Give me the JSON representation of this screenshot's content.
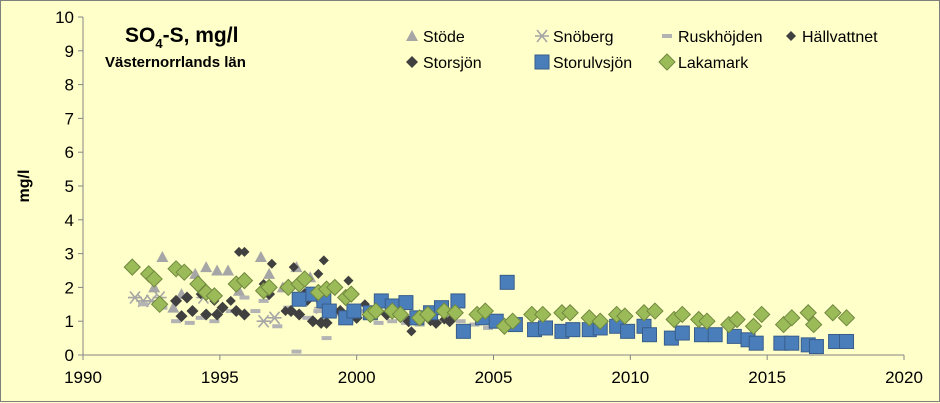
{
  "chart_data": {
    "type": "scatter",
    "title_main": "SO",
    "title_sub": "4",
    "title_rest": "-S, mg/l",
    "subtitle": "Västernorrlands län",
    "ylabel": "mg/l",
    "xlabel": "",
    "xlim": [
      1990,
      2020
    ],
    "ylim": [
      0,
      10
    ],
    "x_ticks": [
      "1990",
      "1995",
      "2000",
      "2005",
      "2010",
      "2015",
      "2020"
    ],
    "y_ticks": [
      "0",
      "1",
      "2",
      "3",
      "4",
      "5",
      "6",
      "7",
      "8",
      "9",
      "10"
    ],
    "legend_placement": "top-right",
    "grid": false,
    "series": [
      {
        "name": "Stöde",
        "marker": "triangle",
        "color": "#a6a6a6",
        "points": [
          [
            1992.6,
            2.0
          ],
          [
            1992.9,
            2.9
          ],
          [
            1993.3,
            1.4
          ],
          [
            1993.6,
            1.8
          ],
          [
            1994.1,
            2.4
          ],
          [
            1994.5,
            2.6
          ],
          [
            1994.9,
            2.5
          ],
          [
            1995.3,
            2.5
          ],
          [
            1995.7,
            1.9
          ],
          [
            1996.5,
            2.9
          ],
          [
            1996.8,
            2.4
          ],
          [
            1997.3,
            2.0
          ],
          [
            1997.8,
            2.6
          ],
          [
            1998.3,
            2.3
          ],
          [
            1998.8,
            1.8
          ]
        ]
      },
      {
        "name": "Snöberg",
        "marker": "asterisk",
        "color": "#a6a6a6",
        "points": [
          [
            1991.9,
            1.7
          ],
          [
            1992.2,
            1.6
          ],
          [
            1992.5,
            1.6
          ],
          [
            1992.8,
            1.7
          ],
          [
            1994.4,
            1.7
          ],
          [
            1996.6,
            1.0
          ],
          [
            1997.0,
            1.1
          ],
          [
            1998.7,
            1.4
          ]
        ]
      },
      {
        "name": "Ruskhöjden",
        "marker": "dash",
        "color": "#b3b3b3",
        "points": [
          [
            1992.2,
            1.5
          ],
          [
            1992.9,
            1.4
          ],
          [
            1993.4,
            1.0
          ],
          [
            1993.9,
            0.95
          ],
          [
            1994.3,
            1.1
          ],
          [
            1994.8,
            1.0
          ],
          [
            1995.4,
            1.3
          ],
          [
            1995.9,
            1.7
          ],
          [
            1996.3,
            1.3
          ],
          [
            1996.6,
            1.6
          ],
          [
            1997.1,
            0.85
          ],
          [
            1997.5,
            1.4
          ],
          [
            1997.8,
            0.1
          ],
          [
            1998.2,
            1.1
          ],
          [
            1998.6,
            1.3
          ],
          [
            1998.9,
            0.5
          ],
          [
            1999.3,
            1.2
          ],
          [
            1999.7,
            1.0
          ],
          [
            2000.3,
            1.3
          ],
          [
            2000.8,
            0.95
          ],
          [
            2001.3,
            1.0
          ],
          [
            2001.8,
            0.95
          ],
          [
            2002.3,
            0.9
          ],
          [
            2002.8,
            1.0
          ],
          [
            2003.3,
            1.1
          ],
          [
            2003.8,
            1.0
          ],
          [
            2004.3,
            0.9
          ],
          [
            2004.8,
            0.8
          ],
          [
            2005.3,
            0.95
          ]
        ]
      },
      {
        "name": "Hällvattnet",
        "marker": "small-diamond",
        "color": "#404040",
        "points": [
          [
            1993.8,
            1.7
          ],
          [
            1994.3,
            1.8
          ],
          [
            1994.8,
            1.6
          ],
          [
            1995.4,
            1.6
          ],
          [
            1995.7,
            3.05
          ],
          [
            1995.9,
            3.05
          ],
          [
            1996.6,
            2.1
          ],
          [
            1996.9,
            2.7
          ],
          [
            1997.4,
            1.3
          ],
          [
            1997.7,
            2.6
          ],
          [
            1998.2,
            1.6
          ],
          [
            1998.6,
            2.4
          ],
          [
            1998.8,
            2.8
          ],
          [
            1999.2,
            1.9
          ],
          [
            1999.7,
            2.2
          ],
          [
            2000.3,
            1.5
          ],
          [
            2001.2,
            1.4
          ],
          [
            2001.6,
            1.2
          ],
          [
            2002.0,
            0.7
          ],
          [
            2002.7,
            1.0
          ],
          [
            2003.2,
            1.05
          ]
        ]
      },
      {
        "name": "Storsjön",
        "marker": "diamond",
        "color": "#404040",
        "points": [
          [
            1993.4,
            1.6
          ],
          [
            1993.6,
            1.15
          ],
          [
            1993.8,
            1.7
          ],
          [
            1994.0,
            1.3
          ],
          [
            1994.5,
            1.2
          ],
          [
            1994.9,
            1.2
          ],
          [
            1995.1,
            1.4
          ],
          [
            1995.6,
            1.3
          ],
          [
            1995.9,
            1.2
          ],
          [
            1996.8,
            1.8
          ],
          [
            1997.6,
            1.3
          ],
          [
            1997.9,
            1.2
          ],
          [
            1998.1,
            1.8
          ],
          [
            1998.4,
            1.0
          ],
          [
            1998.7,
            0.95
          ],
          [
            1998.9,
            0.95
          ],
          [
            1999.4,
            1.3
          ],
          [
            2000.0,
            1.1
          ],
          [
            2000.6,
            1.2
          ],
          [
            2001.1,
            1.2
          ],
          [
            2001.9,
            1.0
          ],
          [
            2002.4,
            1.1
          ],
          [
            2002.9,
            0.95
          ],
          [
            2003.4,
            1.0
          ]
        ]
      },
      {
        "name": "Storulvsjön",
        "marker": "square",
        "color": "#4a7ebb",
        "points": [
          [
            1997.9,
            1.65
          ],
          [
            1998.4,
            1.8
          ],
          [
            1998.8,
            1.6
          ],
          [
            1999.0,
            1.3
          ],
          [
            1999.6,
            1.1
          ],
          [
            1999.9,
            1.3
          ],
          [
            2000.5,
            1.25
          ],
          [
            2000.9,
            1.6
          ],
          [
            2001.3,
            1.45
          ],
          [
            2001.8,
            1.55
          ],
          [
            2002.2,
            1.1
          ],
          [
            2002.7,
            1.25
          ],
          [
            2003.1,
            1.4
          ],
          [
            2003.7,
            1.6
          ],
          [
            2003.9,
            0.7
          ],
          [
            2004.6,
            1.1
          ],
          [
            2005.1,
            1.0
          ],
          [
            2005.5,
            2.15
          ],
          [
            2005.8,
            0.9
          ],
          [
            2006.5,
            0.75
          ],
          [
            2006.9,
            0.8
          ],
          [
            2007.5,
            0.7
          ],
          [
            2007.9,
            0.75
          ],
          [
            2008.5,
            0.75
          ],
          [
            2008.9,
            0.8
          ],
          [
            2009.5,
            0.85
          ],
          [
            2009.9,
            0.7
          ],
          [
            2010.5,
            0.85
          ],
          [
            2010.7,
            0.6
          ],
          [
            2011.5,
            0.5
          ],
          [
            2011.9,
            0.65
          ],
          [
            2012.6,
            0.6
          ],
          [
            2013.1,
            0.6
          ],
          [
            2013.8,
            0.55
          ],
          [
            2014.3,
            0.45
          ],
          [
            2014.6,
            0.35
          ],
          [
            2015.5,
            0.35
          ],
          [
            2015.9,
            0.35
          ],
          [
            2016.5,
            0.3
          ],
          [
            2016.8,
            0.25
          ],
          [
            2017.5,
            0.4
          ],
          [
            2017.9,
            0.4
          ]
        ]
      },
      {
        "name": "Lakamark",
        "marker": "diamond",
        "color": "#9bbb59",
        "points": [
          [
            1991.8,
            2.6
          ],
          [
            1992.4,
            2.4
          ],
          [
            1992.6,
            2.25
          ],
          [
            1992.8,
            1.5
          ],
          [
            1993.4,
            2.55
          ],
          [
            1993.7,
            2.45
          ],
          [
            1994.2,
            2.1
          ],
          [
            1994.5,
            1.85
          ],
          [
            1994.8,
            1.75
          ],
          [
            1995.6,
            2.1
          ],
          [
            1995.9,
            2.2
          ],
          [
            1996.6,
            1.9
          ],
          [
            1996.8,
            2.0
          ],
          [
            1997.5,
            2.0
          ],
          [
            1997.9,
            2.1
          ],
          [
            1998.1,
            2.25
          ],
          [
            1998.6,
            1.85
          ],
          [
            1998.9,
            1.95
          ],
          [
            1999.2,
            2.0
          ],
          [
            1999.6,
            1.7
          ],
          [
            1999.8,
            1.8
          ],
          [
            2000.5,
            1.2
          ],
          [
            2000.7,
            1.3
          ],
          [
            2001.3,
            1.3
          ],
          [
            2001.6,
            1.2
          ],
          [
            2002.3,
            1.1
          ],
          [
            2002.6,
            1.2
          ],
          [
            2003.2,
            1.3
          ],
          [
            2003.6,
            1.25
          ],
          [
            2004.4,
            1.2
          ],
          [
            2004.7,
            1.3
          ],
          [
            2005.4,
            0.85
          ],
          [
            2005.7,
            1.0
          ],
          [
            2006.4,
            1.2
          ],
          [
            2006.8,
            1.2
          ],
          [
            2007.5,
            1.25
          ],
          [
            2007.8,
            1.25
          ],
          [
            2008.5,
            1.1
          ],
          [
            2008.9,
            1.0
          ],
          [
            2009.5,
            1.2
          ],
          [
            2009.8,
            1.15
          ],
          [
            2010.5,
            1.25
          ],
          [
            2010.9,
            1.3
          ],
          [
            2011.6,
            1.05
          ],
          [
            2011.9,
            1.2
          ],
          [
            2012.5,
            1.05
          ],
          [
            2012.8,
            1.0
          ],
          [
            2013.6,
            0.9
          ],
          [
            2013.9,
            1.05
          ],
          [
            2014.5,
            0.85
          ],
          [
            2014.8,
            1.2
          ],
          [
            2015.6,
            0.9
          ],
          [
            2015.9,
            1.1
          ],
          [
            2016.5,
            1.25
          ],
          [
            2016.7,
            0.9
          ],
          [
            2017.4,
            1.25
          ],
          [
            2017.9,
            1.1
          ]
        ]
      }
    ]
  }
}
